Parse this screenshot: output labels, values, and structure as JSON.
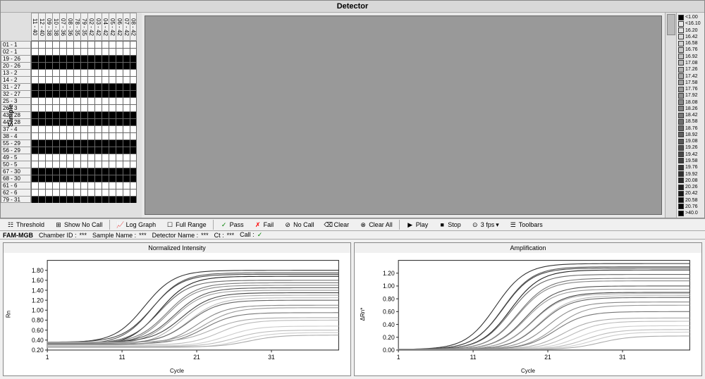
{
  "detector": {
    "title": "Detector",
    "sample_axis_label": "Sample",
    "col_headers": [
      "11 - 40",
      "12 - 40",
      "09 - 38",
      "10 - 38",
      "07 - 36",
      "08 - 36",
      "78 - 35",
      "79 - 35",
      "02 - 42",
      "03 - 42",
      "04 - 42",
      "05 - 42",
      "06 - 42",
      "07 - 42",
      "08 - 42"
    ],
    "rows": [
      {
        "label": "01 - 1",
        "cells": [
          0,
          0,
          0,
          0,
          0,
          0,
          0,
          0,
          0,
          0,
          0,
          0,
          0,
          0,
          0
        ]
      },
      {
        "label": "02 - 1",
        "cells": [
          0,
          0,
          0,
          0,
          0,
          0,
          0,
          0,
          0,
          0,
          0,
          0,
          0,
          0,
          0
        ]
      },
      {
        "label": "19 - 26",
        "cells": [
          1,
          1,
          1,
          1,
          1,
          1,
          1,
          1,
          1,
          1,
          1,
          1,
          1,
          1,
          1
        ]
      },
      {
        "label": "20 - 26",
        "cells": [
          1,
          1,
          1,
          1,
          1,
          1,
          1,
          1,
          1,
          1,
          1,
          1,
          1,
          1,
          1
        ]
      },
      {
        "label": "13 - 2",
        "cells": [
          0,
          0,
          0,
          0,
          0,
          0,
          0,
          0,
          0,
          0,
          0,
          0,
          0,
          0,
          0
        ]
      },
      {
        "label": "14 - 2",
        "cells": [
          0,
          0,
          0,
          0,
          0,
          0,
          0,
          0,
          0,
          0,
          0,
          0,
          0,
          0,
          0
        ]
      },
      {
        "label": "31 - 27",
        "cells": [
          1,
          1,
          1,
          1,
          1,
          1,
          1,
          1,
          1,
          1,
          1,
          1,
          1,
          1,
          1
        ]
      },
      {
        "label": "32 - 27",
        "cells": [
          1,
          1,
          1,
          1,
          1,
          1,
          1,
          1,
          1,
          1,
          1,
          1,
          1,
          1,
          1
        ]
      },
      {
        "label": "25 - 3",
        "cells": [
          0,
          0,
          0,
          0,
          0,
          0,
          0,
          0,
          0,
          0,
          0,
          0,
          0,
          0,
          0
        ]
      },
      {
        "label": "26 - 3",
        "cells": [
          0,
          0,
          0,
          0,
          0,
          0,
          0,
          0,
          0,
          0,
          0,
          0,
          0,
          0,
          0
        ]
      },
      {
        "label": "43 - 28",
        "cells": [
          1,
          1,
          1,
          1,
          1,
          1,
          1,
          1,
          1,
          1,
          1,
          1,
          1,
          1,
          1
        ]
      },
      {
        "label": "44 - 28",
        "cells": [
          1,
          1,
          1,
          1,
          1,
          1,
          1,
          1,
          1,
          1,
          1,
          1,
          1,
          1,
          1
        ]
      },
      {
        "label": "37 - 4",
        "cells": [
          0,
          0,
          0,
          0,
          0,
          0,
          0,
          0,
          0,
          0,
          0,
          0,
          0,
          0,
          0
        ]
      },
      {
        "label": "38 - 4",
        "cells": [
          0,
          0,
          0,
          0,
          0,
          0,
          0,
          0,
          0,
          0,
          0,
          0,
          0,
          0,
          0
        ]
      },
      {
        "label": "55 - 29",
        "cells": [
          1,
          1,
          1,
          1,
          1,
          1,
          1,
          1,
          1,
          1,
          1,
          1,
          1,
          1,
          1
        ]
      },
      {
        "label": "56 - 29",
        "cells": [
          1,
          1,
          1,
          1,
          1,
          1,
          1,
          1,
          1,
          1,
          1,
          1,
          1,
          1,
          1
        ]
      },
      {
        "label": "49 - 5",
        "cells": [
          0,
          0,
          0,
          0,
          0,
          0,
          0,
          0,
          0,
          0,
          0,
          0,
          0,
          0,
          0
        ]
      },
      {
        "label": "50 - 5",
        "cells": [
          0,
          0,
          0,
          0,
          0,
          0,
          0,
          0,
          0,
          0,
          0,
          0,
          0,
          0,
          0
        ]
      },
      {
        "label": "67 - 30",
        "cells": [
          1,
          1,
          1,
          1,
          1,
          1,
          1,
          1,
          1,
          1,
          1,
          1,
          1,
          1,
          1
        ]
      },
      {
        "label": "68 - 30",
        "cells": [
          1,
          1,
          1,
          1,
          1,
          1,
          1,
          1,
          1,
          1,
          1,
          1,
          1,
          1,
          1
        ]
      },
      {
        "label": "61 - 6",
        "cells": [
          0,
          0,
          0,
          0,
          0,
          0,
          0,
          0,
          0,
          0,
          0,
          0,
          0,
          0,
          0
        ]
      },
      {
        "label": "62 - 6",
        "cells": [
          0,
          0,
          0,
          0,
          0,
          0,
          0,
          0,
          0,
          0,
          0,
          0,
          0,
          0,
          0
        ]
      },
      {
        "label": "79 - 31",
        "cells": [
          1,
          1,
          1,
          1,
          1,
          1,
          1,
          1,
          1,
          1,
          1,
          1,
          1,
          1,
          1
        ]
      }
    ]
  },
  "legend": [
    {
      "color": "#000000",
      "label": "<1.00"
    },
    {
      "color": "#e8e8e8",
      "label": "<16.10"
    },
    {
      "color": "#e0e0e0",
      "label": "16.20"
    },
    {
      "color": "#d8d8d8",
      "label": "16.42"
    },
    {
      "color": "#d0d0d0",
      "label": "16.58"
    },
    {
      "color": "#c8c8c8",
      "label": "16.76"
    },
    {
      "color": "#c0c0c0",
      "label": "16.92"
    },
    {
      "color": "#b8b8b8",
      "label": "17.08"
    },
    {
      "color": "#b0b0b0",
      "label": "17.26"
    },
    {
      "color": "#a8a8a8",
      "label": "17.42"
    },
    {
      "color": "#a0a0a0",
      "label": "17.58"
    },
    {
      "color": "#989898",
      "label": "17.76"
    },
    {
      "color": "#909090",
      "label": "17.92"
    },
    {
      "color": "#888888",
      "label": "18.08"
    },
    {
      "color": "#808080",
      "label": "18.26"
    },
    {
      "color": "#787878",
      "label": "18.42"
    },
    {
      "color": "#707070",
      "label": "18.58"
    },
    {
      "color": "#686868",
      "label": "18.76"
    },
    {
      "color": "#606060",
      "label": "18.92"
    },
    {
      "color": "#585858",
      "label": "19.08"
    },
    {
      "color": "#505050",
      "label": "19.26"
    },
    {
      "color": "#484848",
      "label": "19.42"
    },
    {
      "color": "#404040",
      "label": "19.58"
    },
    {
      "color": "#383838",
      "label": "19.76"
    },
    {
      "color": "#303030",
      "label": "19.92"
    },
    {
      "color": "#282828",
      "label": "20.08"
    },
    {
      "color": "#202020",
      "label": "20.26"
    },
    {
      "color": "#181818",
      "label": "20.42"
    },
    {
      "color": "#101010",
      "label": "20.58"
    },
    {
      "color": "#080808",
      "label": "20.76"
    },
    {
      "color": "#000000",
      "label": ">40.0"
    }
  ],
  "toolbar": {
    "threshold": "Threshold",
    "show_no_call": "Show No Call",
    "log_graph": "Log Graph",
    "full_range": "Full Range",
    "pass": "Pass",
    "fail": "Fail",
    "no_call": "No Call",
    "clear": "Clear",
    "clear_all": "Clear All",
    "play": "Play",
    "stop": "Stop",
    "fps": "3 fps",
    "toolbars": "Toolbars"
  },
  "status": {
    "detector_name_label": "FAM-MGB",
    "chamber_id_label": "Chamber ID :",
    "chamber_id": "***",
    "sample_name_label": "Sample Name :",
    "sample_name": "***",
    "detector_label": "Detector Name :",
    "detector": "***",
    "ct_label": "Ct :",
    "ct": "***",
    "call_label": "Call :",
    "call": "✓"
  },
  "charts": {
    "left": {
      "title": "Normalized Intensity",
      "ylabel": "Rn",
      "xlabel": "Cycle",
      "xlim": [
        1,
        40
      ],
      "ylim": [
        0.2,
        2.0
      ],
      "xticks": [
        1,
        11,
        21,
        31
      ],
      "yticks": [
        0.2,
        0.4,
        0.6,
        0.8,
        1.0,
        1.2,
        1.4,
        1.6,
        1.8
      ],
      "curves": [
        {
          "color": "#333",
          "y0": 0.35,
          "y1": 1.8,
          "mid": 14
        },
        {
          "color": "#555",
          "y0": 0.32,
          "y1": 1.75,
          "mid": 15
        },
        {
          "color": "#444",
          "y0": 0.36,
          "y1": 1.72,
          "mid": 15
        },
        {
          "color": "#222",
          "y0": 0.3,
          "y1": 1.68,
          "mid": 16
        },
        {
          "color": "#666",
          "y0": 0.33,
          "y1": 1.6,
          "mid": 16
        },
        {
          "color": "#777",
          "y0": 0.34,
          "y1": 1.55,
          "mid": 17
        },
        {
          "color": "#888",
          "y0": 0.31,
          "y1": 1.5,
          "mid": 17
        },
        {
          "color": "#555",
          "y0": 0.35,
          "y1": 1.45,
          "mid": 18
        },
        {
          "color": "#999",
          "y0": 0.32,
          "y1": 1.4,
          "mid": 18
        },
        {
          "color": "#444",
          "y0": 0.36,
          "y1": 1.35,
          "mid": 19
        },
        {
          "color": "#aaa",
          "y0": 0.3,
          "y1": 1.3,
          "mid": 19
        },
        {
          "color": "#bbb",
          "y0": 0.33,
          "y1": 1.25,
          "mid": 20
        },
        {
          "color": "#666",
          "y0": 0.34,
          "y1": 1.2,
          "mid": 20
        },
        {
          "color": "#888",
          "y0": 0.31,
          "y1": 1.1,
          "mid": 21
        },
        {
          "color": "#999",
          "y0": 0.35,
          "y1": 1.05,
          "mid": 22
        },
        {
          "color": "#777",
          "y0": 0.32,
          "y1": 0.95,
          "mid": 22
        },
        {
          "color": "#aaa",
          "y0": 0.36,
          "y1": 0.85,
          "mid": 23
        },
        {
          "color": "#bbb",
          "y0": 0.3,
          "y1": 0.8,
          "mid": 24
        },
        {
          "color": "#ccc",
          "y0": 0.28,
          "y1": 0.68,
          "mid": 25
        },
        {
          "color": "#bbb",
          "y0": 0.27,
          "y1": 0.6,
          "mid": 26
        },
        {
          "color": "#ccc",
          "y0": 0.25,
          "y1": 0.55,
          "mid": 27
        },
        {
          "color": "#aaa",
          "y0": 0.26,
          "y1": 0.5,
          "mid": 28
        }
      ]
    },
    "right": {
      "title": "Amplification",
      "ylabel": "ΔRn*",
      "xlabel": "Cycle",
      "xlim": [
        1,
        40
      ],
      "ylim": [
        0.0,
        1.4
      ],
      "xticks": [
        1,
        11,
        21,
        31
      ],
      "yticks": [
        0.0,
        0.2,
        0.4,
        0.6,
        0.8,
        1.0,
        1.2
      ],
      "curves": [
        {
          "color": "#333",
          "y0": 0.01,
          "y1": 1.35,
          "mid": 14
        },
        {
          "color": "#555",
          "y0": 0.01,
          "y1": 1.3,
          "mid": 15
        },
        {
          "color": "#444",
          "y0": 0.01,
          "y1": 1.28,
          "mid": 15
        },
        {
          "color": "#222",
          "y0": 0.01,
          "y1": 1.25,
          "mid": 16
        },
        {
          "color": "#666",
          "y0": 0.01,
          "y1": 1.18,
          "mid": 16
        },
        {
          "color": "#777",
          "y0": 0.01,
          "y1": 1.12,
          "mid": 17
        },
        {
          "color": "#888",
          "y0": 0.01,
          "y1": 1.08,
          "mid": 17
        },
        {
          "color": "#555",
          "y0": 0.01,
          "y1": 1.0,
          "mid": 18
        },
        {
          "color": "#999",
          "y0": 0.01,
          "y1": 0.95,
          "mid": 18
        },
        {
          "color": "#444",
          "y0": 0.01,
          "y1": 0.9,
          "mid": 19
        },
        {
          "color": "#aaa",
          "y0": 0.01,
          "y1": 0.88,
          "mid": 19
        },
        {
          "color": "#bbb",
          "y0": 0.01,
          "y1": 0.85,
          "mid": 20
        },
        {
          "color": "#666",
          "y0": 0.01,
          "y1": 0.82,
          "mid": 20
        },
        {
          "color": "#888",
          "y0": 0.01,
          "y1": 0.75,
          "mid": 21
        },
        {
          "color": "#999",
          "y0": 0.01,
          "y1": 0.7,
          "mid": 22
        },
        {
          "color": "#777",
          "y0": 0.01,
          "y1": 0.6,
          "mid": 22
        },
        {
          "color": "#aaa",
          "y0": 0.01,
          "y1": 0.5,
          "mid": 23
        },
        {
          "color": "#bbb",
          "y0": 0.01,
          "y1": 0.45,
          "mid": 24
        },
        {
          "color": "#ccc",
          "y0": 0.01,
          "y1": 0.38,
          "mid": 25
        },
        {
          "color": "#bbb",
          "y0": 0.01,
          "y1": 0.32,
          "mid": 26
        },
        {
          "color": "#ccc",
          "y0": 0.01,
          "y1": 0.28,
          "mid": 27
        },
        {
          "color": "#aaa",
          "y0": 0.01,
          "y1": 0.22,
          "mid": 28
        }
      ]
    }
  }
}
